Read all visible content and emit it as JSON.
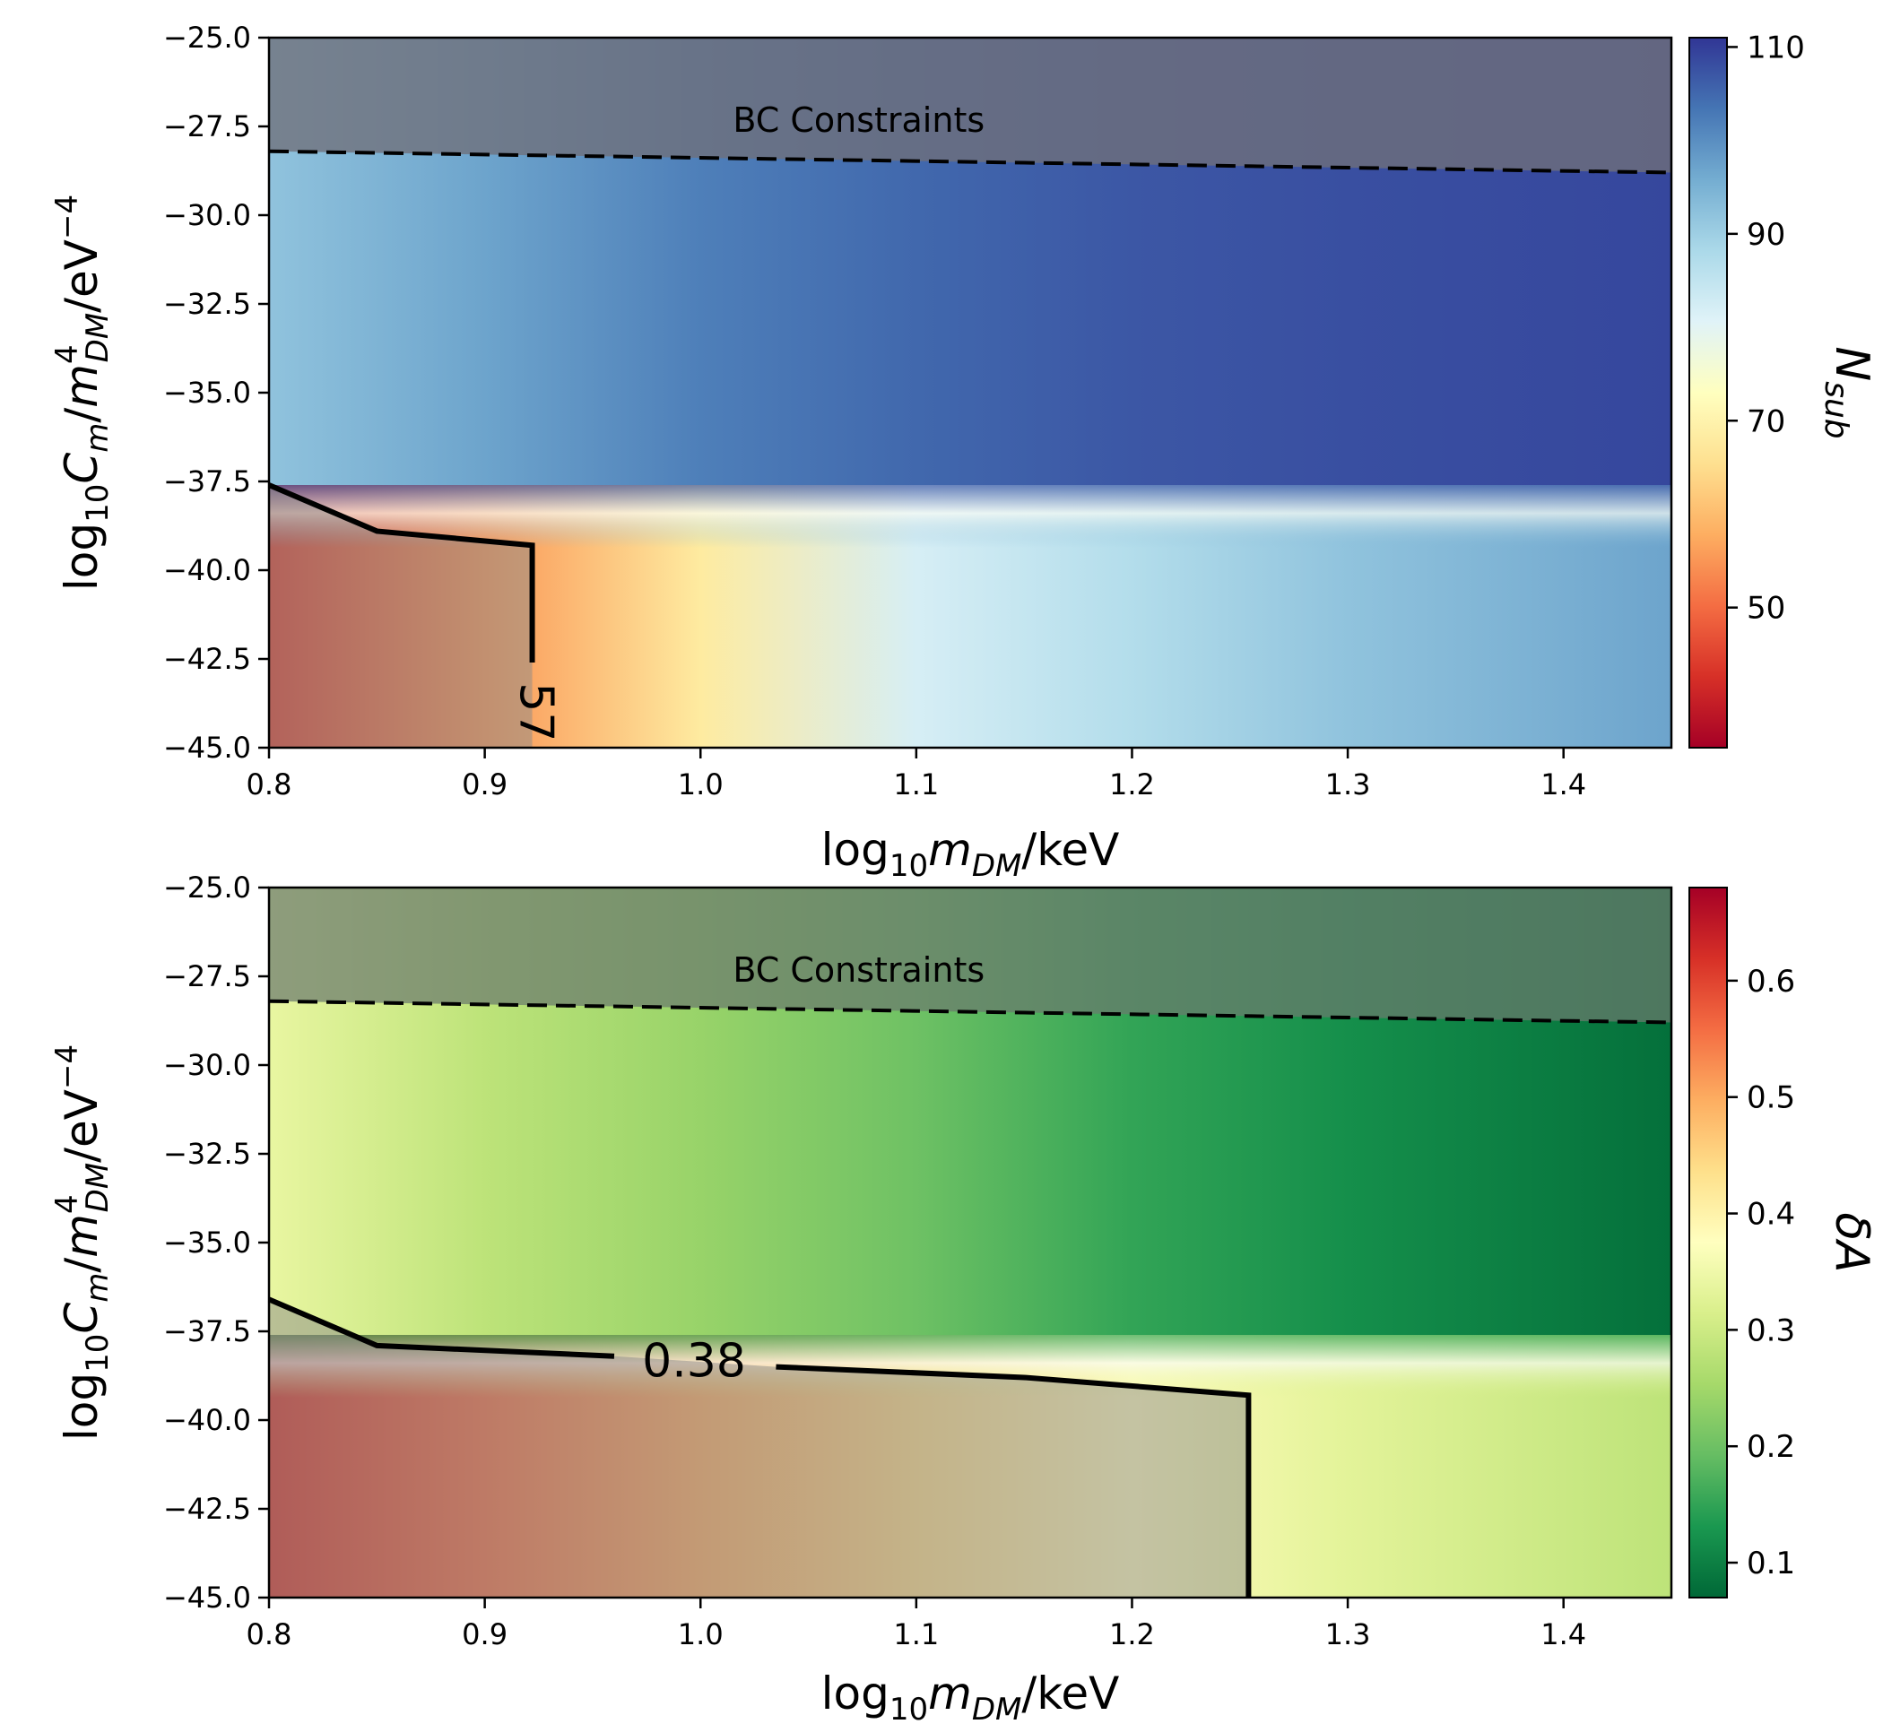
{
  "chart_data": [
    {
      "type": "heatmap",
      "panel": "top",
      "xlabel": "log10 mDM/keV",
      "ylabel": "log10 Cm/m^4_DM/eV^-4",
      "xlim": [
        0.8,
        1.45
      ],
      "ylim": [
        -45.0,
        -25.0
      ],
      "xticks": [
        "0.8",
        "0.9",
        "1.0",
        "1.1",
        "1.2",
        "1.3",
        "1.4"
      ],
      "yticks": [
        "−25.0",
        "−27.5",
        "−30.0",
        "−32.5",
        "−35.0",
        "−37.5",
        "−40.0",
        "−42.5",
        "−45.0"
      ],
      "colormap": "RdYlBu",
      "colorbar": {
        "label": "N_sub",
        "range": [
          35,
          111
        ],
        "ticks": [
          "50",
          "70",
          "90",
          "110"
        ],
        "colors": [
          "#a50026",
          "#d73027",
          "#f46d43",
          "#fdae61",
          "#fee090",
          "#ffffbf",
          "#e0f3f8",
          "#abd9e9",
          "#74add1",
          "#4575b4",
          "#313695"
        ]
      },
      "value_grid": {
        "description": "Nsub by x (columns) and y (rows), low C_m region vs high C_m region",
        "x": [
          0.8,
          0.9,
          1.0,
          1.1,
          1.2,
          1.3,
          1.45
        ],
        "low_y_values": [
          44,
          55,
          68,
          82,
          87,
          92,
          97
        ],
        "high_y_values": [
          92,
          97,
          102,
          105,
          107,
          108,
          109
        ]
      },
      "contour": {
        "level_label": "57",
        "points": [
          [
            0.8,
            -37.6
          ],
          [
            0.85,
            -38.9
          ],
          [
            0.922,
            -39.3
          ],
          [
            0.922,
            -42.6
          ]
        ],
        "label_x": 0.922,
        "label_y": -44.0
      },
      "excluded_region": {
        "label": "BC Constraints",
        "boundary": [
          [
            0.8,
            -28.2
          ],
          [
            1.45,
            -28.8
          ]
        ]
      }
    },
    {
      "type": "heatmap",
      "panel": "bottom",
      "xlabel": "log10 mDM/keV",
      "ylabel": "log10 Cm/m^4_DM/eV^-4",
      "xlim": [
        0.8,
        1.45
      ],
      "ylim": [
        -45.0,
        -25.0
      ],
      "xticks": [
        "0.8",
        "0.9",
        "1.0",
        "1.1",
        "1.2",
        "1.3",
        "1.4"
      ],
      "yticks": [
        "−25.0",
        "−27.5",
        "−30.0",
        "−32.5",
        "−35.0",
        "−37.5",
        "−40.0",
        "−42.5",
        "−45.0"
      ],
      "colormap": "RdYlGn_r",
      "colorbar": {
        "label": "δA",
        "range": [
          0.07,
          0.68
        ],
        "ticks": [
          "0.1",
          "0.2",
          "0.3",
          "0.4",
          "0.5",
          "0.6"
        ],
        "colors": [
          "#006837",
          "#1a9850",
          "#66bd63",
          "#a6d96a",
          "#d9ef8b",
          "#ffffbf",
          "#fee08b",
          "#fdae61",
          "#f46d43",
          "#d73027",
          "#a50026"
        ]
      },
      "value_grid": {
        "description": "δA by x (columns), low C_m region vs high C_m region",
        "x": [
          0.8,
          0.9,
          1.0,
          1.1,
          1.2,
          1.3,
          1.45
        ],
        "low_y_values": [
          0.62,
          0.56,
          0.5,
          0.44,
          0.38,
          0.33,
          0.28
        ],
        "high_y_values": [
          0.34,
          0.28,
          0.24,
          0.2,
          0.15,
          0.12,
          0.08
        ]
      },
      "contour": {
        "level_label": "0.38",
        "points": [
          [
            0.8,
            -36.6
          ],
          [
            0.85,
            -37.9
          ],
          [
            0.96,
            -38.2
          ],
          [
            1.035,
            -38.5
          ],
          [
            1.15,
            -38.8
          ],
          [
            1.254,
            -39.3
          ],
          [
            1.254,
            -45.0
          ]
        ],
        "label_x": 0.997,
        "label_y": -38.3
      },
      "excluded_region": {
        "label": "BC Constraints",
        "boundary": [
          [
            0.8,
            -28.2
          ],
          [
            1.45,
            -28.8
          ]
        ]
      }
    }
  ]
}
